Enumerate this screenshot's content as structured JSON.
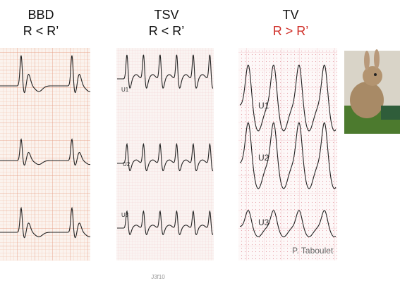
{
  "panels": [
    {
      "title": "BBD",
      "criterion": "R < R’"
    },
    {
      "title": "TSV",
      "criterion": "R < R’",
      "leads": [
        "U1",
        "U2",
        "U3"
      ]
    },
    {
      "title": "TV",
      "criterion": "R > R’",
      "leads": [
        "U1",
        "U2",
        "U3"
      ],
      "credit": "P. Taboulet"
    }
  ],
  "footer": "J3f10"
}
